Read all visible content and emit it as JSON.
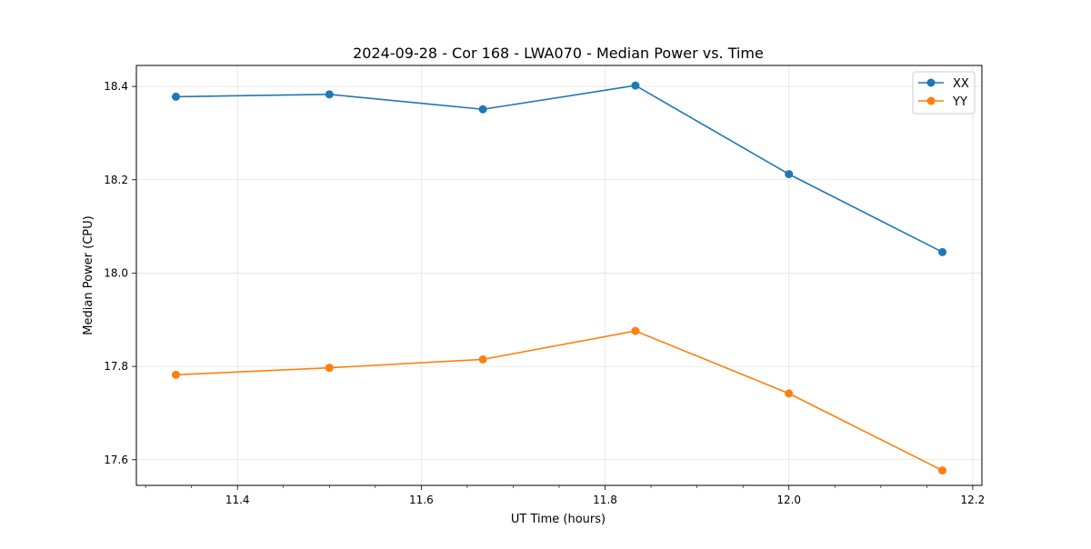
{
  "chart_data": {
    "type": "line",
    "title": "2024-09-28 - Cor 168 - LWA070 - Median Power vs. Time",
    "xlabel": "UT Time (hours)",
    "ylabel": "Median Power (CPU)",
    "xlim": [
      11.29,
      12.21
    ],
    "ylim": [
      17.545,
      18.445
    ],
    "xticks": [
      11.4,
      11.6,
      11.8,
      12.0,
      12.2
    ],
    "xtick_labels": [
      "11.4",
      "11.6",
      "11.8",
      "12.0",
      "12.2"
    ],
    "yticks": [
      17.6,
      17.8,
      18.0,
      18.2,
      18.4
    ],
    "ytick_labels": [
      "17.6",
      "17.8",
      "18.0",
      "18.2",
      "18.4"
    ],
    "grid": true,
    "legend_position": "top-right",
    "x": [
      11.333,
      11.5,
      11.667,
      11.833,
      12.0,
      12.167
    ],
    "series": [
      {
        "name": "XX",
        "color": "#1f77b4",
        "values": [
          18.378,
          18.383,
          18.351,
          18.402,
          18.212,
          18.045
        ]
      },
      {
        "name": "YY",
        "color": "#ff7f0e",
        "values": [
          17.782,
          17.797,
          17.815,
          17.876,
          17.742,
          17.577
        ]
      }
    ]
  }
}
